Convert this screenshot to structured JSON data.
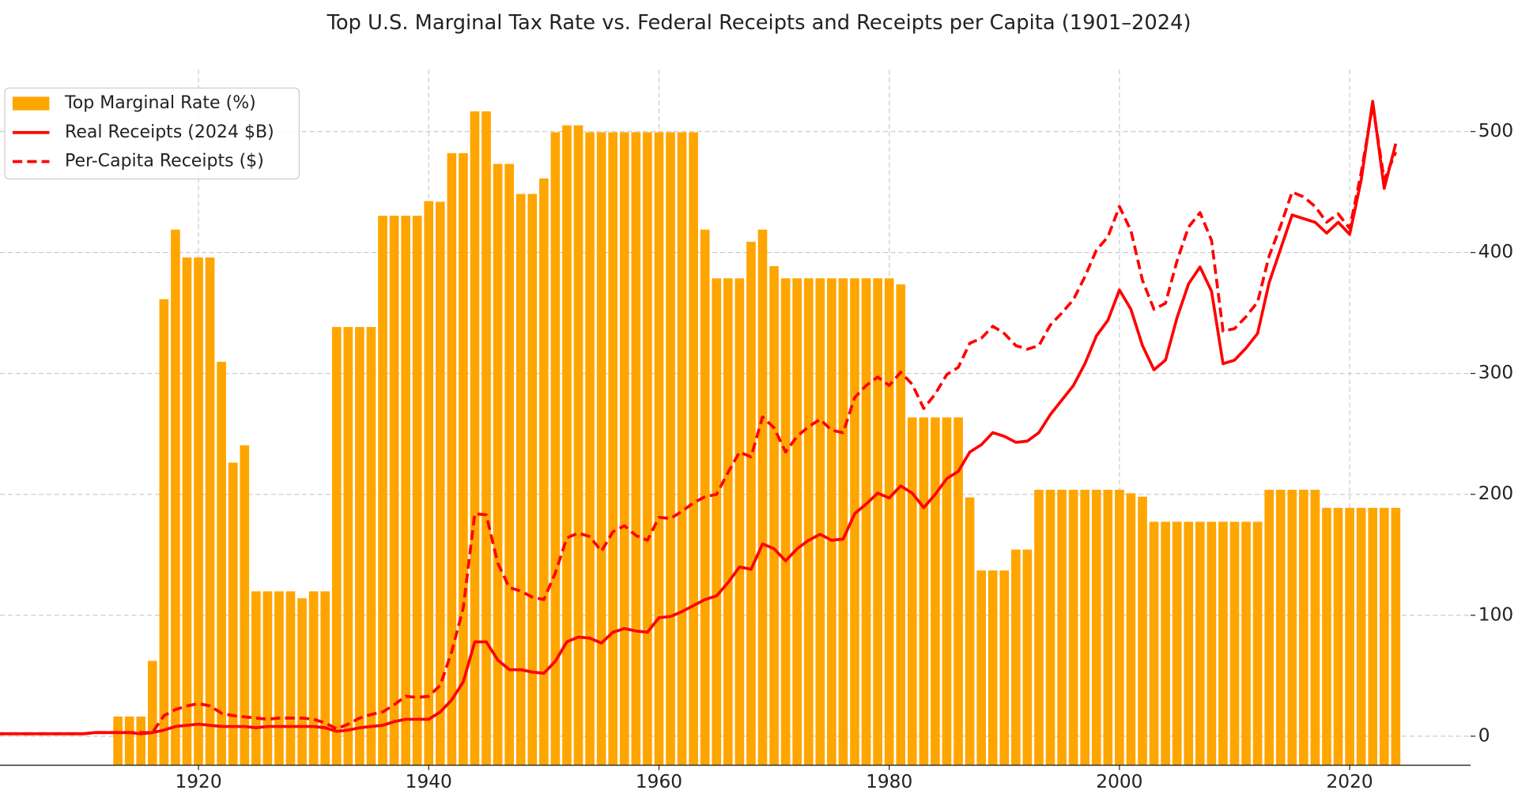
{
  "chart_data": {
    "type": "combo",
    "title": "Top U.S. Marginal Tax Rate vs. Federal Receipts and Receipts per Capita (1901–2024)",
    "x": [
      1901,
      1902,
      1903,
      1904,
      1905,
      1906,
      1907,
      1908,
      1909,
      1910,
      1911,
      1912,
      1913,
      1914,
      1915,
      1916,
      1917,
      1918,
      1919,
      1920,
      1921,
      1922,
      1923,
      1924,
      1925,
      1926,
      1927,
      1928,
      1929,
      1930,
      1931,
      1932,
      1933,
      1934,
      1935,
      1936,
      1937,
      1938,
      1939,
      1940,
      1941,
      1942,
      1943,
      1944,
      1945,
      1946,
      1947,
      1948,
      1949,
      1950,
      1951,
      1952,
      1953,
      1954,
      1955,
      1956,
      1957,
      1958,
      1959,
      1960,
      1961,
      1962,
      1963,
      1964,
      1965,
      1966,
      1967,
      1968,
      1969,
      1970,
      1971,
      1972,
      1973,
      1974,
      1975,
      1976,
      1977,
      1978,
      1979,
      1980,
      1981,
      1982,
      1983,
      1984,
      1985,
      1986,
      1987,
      1988,
      1989,
      1990,
      1991,
      1992,
      1993,
      1994,
      1995,
      1996,
      1997,
      1998,
      1999,
      2000,
      2001,
      2002,
      2003,
      2004,
      2005,
      2006,
      2007,
      2008,
      2009,
      2010,
      2011,
      2012,
      2013,
      2014,
      2015,
      2016,
      2017,
      2018,
      2019,
      2020,
      2021,
      2022,
      2023,
      2024
    ],
    "xlim": [
      1902.76,
      2030.5
    ],
    "xticks": [
      1920,
      1940,
      1960,
      1980,
      2000,
      2020
    ],
    "ylim": [
      0,
      100
    ],
    "y2lim": [
      -24,
      551.2
    ],
    "y2ticks": [
      0,
      100,
      200,
      300,
      400,
      500
    ],
    "grid": true,
    "legend": "upper-left",
    "series": [
      {
        "name": "Top Marginal Rate (%)",
        "type": "bar",
        "axis": "y",
        "color": "#ffa500",
        "values": [
          0,
          0,
          0,
          0,
          0,
          0,
          0,
          0,
          0,
          0,
          0,
          0,
          7,
          7,
          7,
          15,
          67,
          77,
          73,
          73,
          73,
          58,
          43.5,
          46,
          25,
          25,
          25,
          25,
          24,
          25,
          25,
          63,
          63,
          63,
          63,
          79,
          79,
          79,
          79,
          81.1,
          81,
          88,
          88,
          94,
          94,
          86.45,
          86.45,
          82.13,
          82.13,
          84.36,
          91,
          92,
          92,
          91,
          91,
          91,
          91,
          91,
          91,
          91,
          91,
          91,
          91,
          77,
          70,
          70,
          70,
          75.25,
          77,
          71.75,
          70,
          70,
          70,
          70,
          70,
          70,
          70,
          70,
          70,
          70,
          69.13,
          50,
          50,
          50,
          50,
          50,
          38.5,
          28,
          28,
          28,
          31,
          31,
          39.6,
          39.6,
          39.6,
          39.6,
          39.6,
          39.6,
          39.6,
          39.6,
          39.1,
          38.6,
          35,
          35,
          35,
          35,
          35,
          35,
          35,
          35,
          35,
          35,
          39.6,
          39.6,
          39.6,
          39.6,
          39.6,
          37,
          37,
          37,
          37,
          37,
          37,
          37
        ]
      },
      {
        "name": "Real Receipts (2024 $B)",
        "type": "line",
        "axis": "y2",
        "color": "#ff0000",
        "style": "solid",
        "values": [
          2,
          2,
          2,
          2,
          2,
          2,
          2,
          2,
          2,
          2,
          3,
          3,
          3,
          3,
          2,
          3,
          5,
          8,
          9,
          10,
          9,
          8,
          8,
          8,
          7,
          8,
          8,
          8,
          8,
          8,
          7,
          4,
          5,
          7,
          8,
          9,
          12,
          14,
          14,
          14,
          20,
          30,
          45,
          78,
          78,
          63,
          55,
          55,
          53,
          52,
          62,
          78,
          82,
          81,
          77,
          86,
          89,
          87,
          86,
          98,
          99,
          103,
          108,
          113,
          116,
          127,
          140,
          138,
          159,
          155,
          145,
          155,
          162,
          167,
          162,
          163,
          184,
          192,
          201,
          197,
          207,
          201,
          189,
          200,
          213,
          219,
          235,
          241,
          251,
          248,
          243,
          244,
          251,
          266,
          278,
          290,
          308,
          331,
          344,
          369,
          353,
          323,
          303,
          311,
          346,
          374,
          388,
          368,
          308,
          311,
          321,
          333,
          375,
          403,
          431,
          428,
          425,
          416,
          425,
          415,
          460,
          525,
          453,
          490
        ]
      },
      {
        "name": "Per-Capita Receipts ($)",
        "type": "line",
        "axis": "y2",
        "color": "#ff0000",
        "style": "dashed",
        "values": [
          2,
          2,
          2,
          2,
          2,
          2,
          2,
          2,
          2,
          2,
          3,
          3,
          3,
          3,
          3,
          3,
          17,
          22,
          25,
          27,
          25,
          19,
          17,
          16,
          15,
          14,
          15,
          15,
          15,
          14,
          11,
          6,
          10,
          15,
          18,
          20,
          26,
          33,
          32,
          33,
          42,
          70,
          106,
          184,
          183,
          143,
          123,
          120,
          115,
          113,
          135,
          164,
          168,
          165,
          153,
          169,
          174,
          166,
          162,
          181,
          180,
          186,
          193,
          198,
          200,
          218,
          235,
          231,
          264,
          255,
          235,
          248,
          256,
          262,
          253,
          251,
          280,
          290,
          297,
          290,
          301,
          291,
          271,
          283,
          299,
          305,
          325,
          329,
          339,
          333,
          323,
          320,
          323,
          340,
          350,
          361,
          380,
          402,
          413,
          438,
          418,
          377,
          353,
          358,
          393,
          421,
          433,
          410,
          335,
          337,
          347,
          359,
          397,
          422,
          450,
          446,
          438,
          425,
          432,
          420,
          466,
          522,
          460,
          483
        ]
      }
    ]
  }
}
